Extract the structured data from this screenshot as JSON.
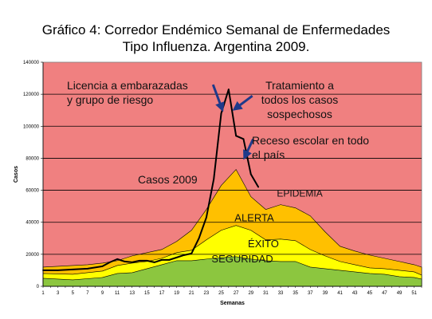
{
  "chart_data": {
    "type": "area",
    "title_line1": "Gráfico 4: Corredor Endémico Semanal de Enfermedades",
    "title_line2": "Tipo Influenza.  Argentina 2009.",
    "xlabel": "Semanas",
    "ylabel": "Casos",
    "xlim": [
      1,
      52
    ],
    "ylim": [
      0,
      140000
    ],
    "x_tick_labels": [
      "1",
      "3",
      "5",
      "7",
      "9",
      "11",
      "13",
      "15",
      "17",
      "19",
      "21",
      "23",
      "25",
      "27",
      "29",
      "31",
      "33",
      "35",
      "37",
      "39",
      "41",
      "43",
      "45",
      "47",
      "49",
      "51"
    ],
    "y_tick_labels": [
      "0",
      "20000",
      "40000",
      "60000",
      "80000",
      "100000",
      "120000",
      "140000"
    ],
    "grid": true,
    "colors": {
      "plot_background": "#f08080",
      "seguridad": "#8cc63f",
      "exito": "#ffff00",
      "alerta": "#ffc000",
      "band_edge": "#000000",
      "cases_line": "#000000",
      "gridline": "#000000"
    },
    "bands": [
      {
        "name": "SEGURIDAD",
        "x": [
          1,
          5,
          9,
          11,
          13,
          15,
          17,
          19,
          21,
          23,
          25,
          27,
          29,
          31,
          33,
          35,
          37,
          39,
          41,
          43,
          45,
          47,
          49,
          51,
          52
        ],
        "values": [
          5000,
          4000,
          5500,
          8000,
          8500,
          11000,
          13500,
          16000,
          16000,
          17000,
          18000,
          18500,
          17000,
          16000,
          15500,
          15500,
          12000,
          11000,
          10000,
          9000,
          8000,
          7500,
          6000,
          5500,
          4500
        ]
      },
      {
        "name": "ÉXITO",
        "x": [
          1,
          5,
          9,
          11,
          13,
          15,
          17,
          19,
          21,
          23,
          25,
          27,
          29,
          31,
          33,
          35,
          37,
          39,
          41,
          43,
          45,
          47,
          49,
          51,
          52
        ],
        "values": [
          8000,
          7500,
          9500,
          13000,
          14500,
          15500,
          17500,
          21000,
          22500,
          29000,
          35000,
          38000,
          35000,
          29000,
          29500,
          28500,
          23000,
          19000,
          15500,
          13500,
          11500,
          11000,
          10000,
          9000,
          7000
        ]
      },
      {
        "name": "ALERTA",
        "x": [
          1,
          3,
          5,
          7,
          9,
          11,
          13,
          15,
          17,
          19,
          21,
          23,
          25,
          27,
          29,
          31,
          33,
          35,
          37,
          39,
          41,
          43,
          45,
          47,
          49,
          51,
          52
        ],
        "values": [
          12000,
          12500,
          13000,
          13500,
          14500,
          16000,
          19000,
          21000,
          23000,
          28000,
          35000,
          48000,
          63000,
          73000,
          56000,
          48000,
          51000,
          49000,
          44000,
          34000,
          25000,
          22000,
          19500,
          17500,
          15500,
          13500,
          12000
        ]
      }
    ],
    "band_labels": {
      "epidemia": "EPIDEMIA",
      "alerta": "ALERTA",
      "exito": "ÉXITO",
      "seguridad": "SEGURIDAD"
    },
    "series": [
      {
        "name": "Casos 2009",
        "x": [
          1,
          3,
          5,
          7,
          9,
          10,
          11,
          12,
          13,
          14,
          15,
          16,
          17,
          18,
          19,
          20,
          21,
          22,
          23,
          24,
          25,
          26,
          27,
          28,
          29,
          30
        ],
        "values": [
          10000,
          10000,
          10500,
          11000,
          12500,
          15000,
          17000,
          15500,
          15000,
          16000,
          16000,
          15000,
          16500,
          16500,
          18000,
          19500,
          20500,
          30000,
          43000,
          67000,
          108000,
          123000,
          94000,
          92000,
          70000,
          62000
        ]
      }
    ],
    "annotations": {
      "casos_2009": "Casos 2009",
      "licencia_line1": "Licencia a embarazadas",
      "licencia_line2": "y grupo de riesgo",
      "tratamiento_line1": "Tratamiento a",
      "tratamiento_line2": "todos los casos",
      "tratamiento_line3": "sospechosos",
      "receso_line1": "Receso escolar en todo",
      "receso_line2": "el país"
    },
    "arrows": [
      {
        "name": "licencia-arrow",
        "from": [
          23.9,
          126000
        ],
        "to": [
          25.1,
          111000
        ]
      },
      {
        "name": "tratamiento-arrow",
        "from": [
          29.2,
          119000
        ],
        "to": [
          26.9,
          111000
        ]
      },
      {
        "name": "receso-arrow",
        "from": [
          29.3,
          92000
        ],
        "to": [
          28.2,
          81000
        ]
      }
    ]
  }
}
